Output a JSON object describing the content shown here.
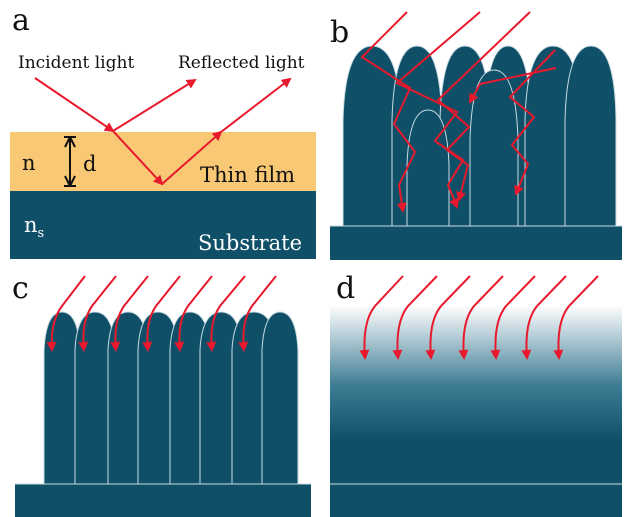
{
  "panels": {
    "a": {
      "letter": "a",
      "incident_label": "Incident light",
      "reflected_label": "Reflected light",
      "film_index": "n",
      "thickness": "d",
      "film_label": "Thin film",
      "substrate_index_base": "n",
      "substrate_index_sub": "s",
      "substrate_label": "Substrate"
    },
    "b": {
      "letter": "b"
    },
    "c": {
      "letter": "c"
    },
    "d": {
      "letter": "d"
    }
  },
  "colors": {
    "substrate": "#0f5068",
    "film": "#f9c875",
    "ray": "#e8192c",
    "bump_outline": "#c9dce4",
    "text": "#111111",
    "substrate_text": "#ffffff"
  }
}
